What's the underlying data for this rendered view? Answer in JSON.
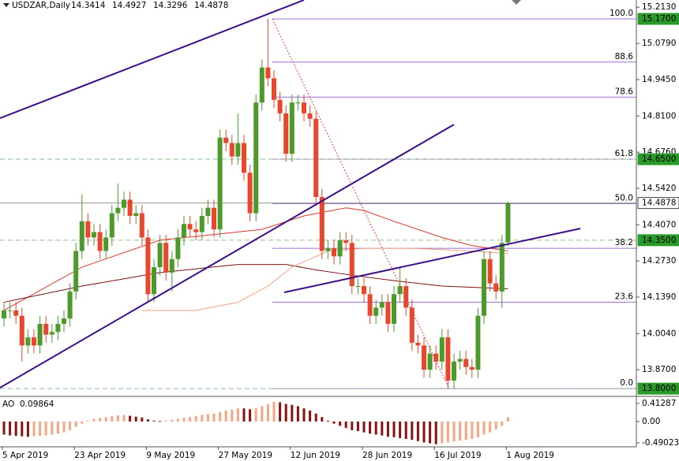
{
  "chart_data": {
    "type": "candlestick",
    "title": "USDZAR,Daily",
    "up_color": "#4c9a2a",
    "down_color": "#e8472d",
    "ylim": [
      13.78,
      15.24
    ],
    "yticks": [
      {
        "value": 15.213,
        "label": "15.2130"
      },
      {
        "value": 15.079,
        "label": "15.0790"
      },
      {
        "value": 14.945,
        "label": "14.9450"
      },
      {
        "value": 14.81,
        "label": "14.8100"
      },
      {
        "value": 14.676,
        "label": "14.6760"
      },
      {
        "value": 14.542,
        "label": "14.5420"
      },
      {
        "value": 14.407,
        "label": "14.4070"
      },
      {
        "value": 14.273,
        "label": "14.2730"
      },
      {
        "value": 14.139,
        "label": "14.1390"
      },
      {
        "value": 14.004,
        "label": "14.0040"
      },
      {
        "value": 13.87,
        "label": "13.8700"
      }
    ],
    "xticks": [
      {
        "value": 0,
        "label": "5 Apr 2019"
      },
      {
        "value": 12,
        "label": "23 Apr 2019"
      },
      {
        "value": 24,
        "label": "9 May 2019"
      },
      {
        "value": 36,
        "label": "27 May 2019"
      },
      {
        "value": 48,
        "label": "12 Jun 2019"
      },
      {
        "value": 60,
        "label": "28 Jun 2019"
      },
      {
        "value": 72,
        "label": "16 Jul 2019"
      },
      {
        "value": 84,
        "label": "1 Aug 2019"
      }
    ],
    "open": [
      14.06,
      14.09,
      14.09,
      14.07,
      13.96,
      13.99,
      13.96,
      14.04,
      14.0,
      14.01,
      14.04,
      14.06,
      14.16,
      14.31,
      14.42,
      14.36,
      14.38,
      14.31,
      14.36,
      14.45,
      14.47,
      14.5,
      14.44,
      14.45,
      14.36,
      14.15,
      14.25,
      14.34,
      14.23,
      14.28,
      14.36,
      14.41,
      14.39,
      14.38,
      14.44,
      14.47,
      14.39,
      14.73,
      14.71,
      14.66,
      14.71,
      14.6,
      14.45,
      14.86,
      14.99,
      14.95,
      14.87,
      14.82,
      14.67,
      14.86,
      14.86,
      14.82,
      14.8,
      14.51,
      14.31,
      14.32,
      14.29,
      14.35,
      14.34,
      14.18,
      14.18,
      14.15,
      14.07,
      14.1,
      14.12,
      14.04,
      14.15,
      14.18,
      14.1,
      13.97,
      13.96,
      13.87,
      13.93,
      13.9,
      13.99,
      13.83,
      13.9,
      13.91,
      13.88,
      13.87,
      14.07,
      14.28,
      14.19,
      14.16,
      14.3414
    ],
    "high": [
      14.12,
      14.12,
      14.12,
      14.1,
      14.02,
      14.02,
      14.07,
      14.07,
      14.04,
      14.07,
      14.09,
      14.19,
      14.34,
      14.52,
      14.45,
      14.41,
      14.41,
      14.39,
      14.48,
      14.56,
      14.53,
      14.53,
      14.48,
      14.48,
      14.39,
      14.28,
      14.37,
      14.37,
      14.31,
      14.39,
      14.44,
      14.44,
      14.42,
      14.47,
      14.5,
      14.5,
      14.76,
      14.76,
      14.74,
      14.82,
      14.74,
      14.63,
      14.89,
      15.02,
      15.17,
      14.98,
      14.9,
      14.85,
      14.89,
      14.89,
      14.89,
      14.85,
      14.83,
      14.54,
      14.35,
      14.35,
      14.38,
      14.38,
      14.37,
      14.21,
      14.21,
      14.18,
      14.13,
      14.15,
      14.15,
      14.18,
      14.25,
      14.21,
      14.13,
      14.0,
      13.99,
      13.96,
      13.96,
      14.02,
      14.02,
      13.93,
      13.94,
      13.94,
      13.91,
      14.1,
      14.31,
      14.31,
      14.22,
      14.37,
      14.4927
    ],
    "low": [
      14.03,
      14.06,
      14.04,
      13.9,
      13.93,
      13.93,
      13.93,
      13.97,
      13.97,
      13.98,
      14.01,
      14.03,
      14.13,
      14.28,
      14.33,
      14.33,
      14.28,
      14.28,
      14.33,
      14.42,
      14.44,
      14.41,
      14.41,
      14.33,
      14.12,
      14.12,
      14.22,
      14.2,
      14.16,
      14.25,
      14.33,
      14.36,
      14.35,
      14.35,
      14.41,
      14.36,
      14.36,
      14.68,
      14.63,
      14.63,
      14.57,
      14.42,
      14.42,
      14.83,
      14.92,
      14.84,
      14.79,
      14.64,
      14.64,
      14.83,
      14.79,
      14.77,
      14.48,
      14.28,
      14.28,
      14.26,
      14.26,
      14.31,
      14.15,
      14.15,
      14.12,
      14.04,
      14.04,
      14.07,
      14.01,
      14.01,
      14.12,
      14.07,
      13.94,
      13.93,
      13.84,
      13.84,
      13.87,
      13.87,
      13.8,
      13.8,
      13.87,
      13.85,
      13.84,
      13.84,
      14.04,
      14.16,
      14.13,
      14.1,
      14.3296
    ],
    "close": [
      14.09,
      14.09,
      14.07,
      13.96,
      13.99,
      13.96,
      14.04,
      14.0,
      14.01,
      14.04,
      14.06,
      14.16,
      14.31,
      14.42,
      14.36,
      14.38,
      14.31,
      14.36,
      14.45,
      14.47,
      14.5,
      14.44,
      14.45,
      14.36,
      14.15,
      14.25,
      14.34,
      14.23,
      14.28,
      14.36,
      14.41,
      14.39,
      14.38,
      14.44,
      14.47,
      14.39,
      14.73,
      14.71,
      14.66,
      14.71,
      14.6,
      14.45,
      14.86,
      14.99,
      14.95,
      14.87,
      14.82,
      14.67,
      14.86,
      14.86,
      14.82,
      14.8,
      14.51,
      14.31,
      14.32,
      14.29,
      14.35,
      14.34,
      14.18,
      14.18,
      14.15,
      14.07,
      14.1,
      14.12,
      14.04,
      14.15,
      14.18,
      14.1,
      13.97,
      13.96,
      13.87,
      13.93,
      13.9,
      13.99,
      13.83,
      13.9,
      13.91,
      13.88,
      13.87,
      14.07,
      14.28,
      14.19,
      14.16,
      14.34,
      14.4878
    ],
    "moving_averages": [
      {
        "color": "#d43a2a",
        "x": [
          0,
          13,
          26,
          43,
          50,
          57,
          60,
          65,
          73,
          78,
          84
        ],
        "values": [
          14.09,
          14.25,
          14.35,
          14.39,
          14.44,
          14.47,
          14.46,
          14.42,
          14.36,
          14.33,
          14.31
        ]
      },
      {
        "color": "#7a1010",
        "x": [
          0,
          13,
          26,
          39,
          47,
          52,
          58,
          65,
          73,
          84
        ],
        "values": [
          14.12,
          14.18,
          14.23,
          14.26,
          14.26,
          14.24,
          14.22,
          14.2,
          14.18,
          14.17
        ]
      },
      {
        "color": "#f0a07a",
        "x": [
          23,
          32,
          39,
          44,
          48,
          54,
          60,
          68,
          78,
          84
        ],
        "values": [
          14.09,
          14.09,
          14.12,
          14.18,
          14.25,
          14.31,
          14.32,
          14.32,
          14.31,
          14.3
        ]
      }
    ],
    "fibonacci": {
      "color": "#9b6fd6",
      "start": 45,
      "levels": [
        {
          "label": "100.0",
          "price": 15.17
        },
        {
          "label": "88.6",
          "price": 15.01
        },
        {
          "label": "78.6",
          "price": 14.88
        },
        {
          "label": "61.8",
          "price": 14.65
        },
        {
          "label": "50.0",
          "price": 14.485
        },
        {
          "label": "38.2",
          "price": 14.32
        },
        {
          "label": "23.6",
          "price": 14.12
        },
        {
          "label": "0.0",
          "price": 13.8
        }
      ]
    },
    "price_labels": [
      {
        "value": 15.17,
        "label": "15.1700",
        "color": "#2a9a2a",
        "text_color": "#ffffff",
        "style": "none"
      },
      {
        "value": 14.65,
        "label": "14.6500",
        "color": "#2a9a2a",
        "text_color": "#ffffff",
        "style": "dashed"
      },
      {
        "value": 14.4878,
        "label": "14.4878",
        "color": "#ffffff",
        "text_color": "#000000",
        "style": "solid"
      },
      {
        "value": 14.35,
        "label": "14.3500",
        "color": "#2a9a2a",
        "text_color": "#ffffff",
        "style": "dashed"
      },
      {
        "value": 13.8,
        "label": "13.8000",
        "color": "#2a9a2a",
        "text_color": "#ffffff",
        "style": "dashed"
      }
    ],
    "ao": {
      "name": "AO",
      "up_color": "#f4a582",
      "down_color": "#8b1010",
      "ylim": [
        -0.58,
        0.52
      ],
      "yticks": [
        0.41287,
        {
          "value": 0,
          "label": "0.00"
        },
        -0.49023
      ],
      "values": [
        -0.3,
        -0.32,
        -0.33,
        -0.34,
        -0.35,
        -0.34,
        -0.33,
        -0.32,
        -0.3,
        -0.28,
        -0.25,
        -0.2,
        -0.12,
        -0.05,
        0.02,
        0.06,
        0.08,
        0.1,
        0.12,
        0.14,
        0.15,
        0.13,
        0.11,
        0.09,
        0.05,
        0.02,
        0.01,
        0.02,
        0.04,
        0.06,
        0.08,
        0.1,
        0.12,
        0.15,
        0.17,
        0.18,
        0.22,
        0.25,
        0.27,
        0.3,
        0.3,
        0.28,
        0.3,
        0.35,
        0.4,
        0.45,
        0.44,
        0.4,
        0.38,
        0.35,
        0.3,
        0.25,
        0.18,
        0.1,
        0.02,
        -0.05,
        -0.1,
        -0.15,
        -0.2,
        -0.22,
        -0.25,
        -0.28,
        -0.3,
        -0.32,
        -0.35,
        -0.36,
        -0.38,
        -0.4,
        -0.42,
        -0.45,
        -0.48,
        -0.5,
        -0.52,
        -0.5,
        -0.48,
        -0.46,
        -0.44,
        -0.42,
        -0.4,
        -0.36,
        -0.3,
        -0.25,
        -0.18,
        -0.1,
        0.09864
      ]
    }
  }
}
